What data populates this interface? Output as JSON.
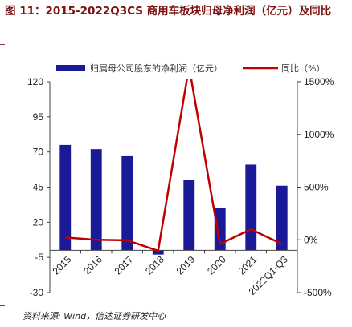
{
  "title": "图 11：2015-2022Q3CS 商用车板块归母净利润（亿元）及同比",
  "source": "资料来源: Wind，信达证券研发中心",
  "colors": {
    "bar": "#1a1a99",
    "line": "#c00000",
    "title": "#7a1010",
    "axis": "#444444"
  },
  "chart_data": {
    "type": "bar+line",
    "categories": [
      "2015",
      "2016",
      "2017",
      "2018",
      "2019",
      "2020",
      "2021",
      "2022Q1-Q3"
    ],
    "series": [
      {
        "name": "归属母公司股东的净利润（亿元）",
        "type": "bar",
        "axis": "left",
        "values": [
          75,
          72,
          67,
          -3,
          50,
          30,
          61,
          46
        ]
      },
      {
        "name": "同比（%）",
        "type": "line",
        "axis": "right",
        "values": [
          22,
          0,
          -5,
          -104,
          1643,
          -40,
          100,
          -40
        ]
      }
    ],
    "y_left": {
      "min": -30,
      "max": 120,
      "ticks": [
        "120",
        "95",
        "70",
        "45",
        "20",
        "-5",
        "-30"
      ]
    },
    "y_right": {
      "min": -500,
      "max": 1500,
      "ticks": [
        "1500%",
        "1000%",
        "500%",
        "0%",
        "-500%"
      ]
    },
    "legend_position": "top"
  }
}
